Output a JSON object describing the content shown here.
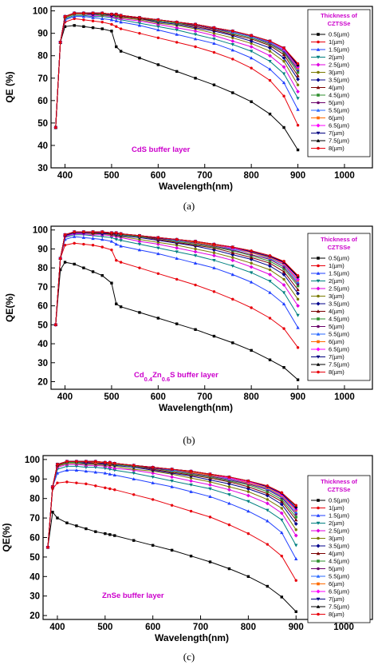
{
  "colors": {
    "series": [
      "#000000",
      "#e8000b",
      "#1f3fff",
      "#008080",
      "#e000e0",
      "#7a7a00",
      "#00008b",
      "#7a0000",
      "#2f8f2f",
      "#6a006a",
      "#2a6aff",
      "#ff6a00",
      "#ff00ff",
      "#000080",
      "#000000",
      "#e8000b"
    ],
    "annotation": "#cc00cc"
  },
  "chart_data": [
    {
      "type": "line",
      "caption": "(a)",
      "title": "",
      "annotation": "CdS buffer layer",
      "xlabel": "Wavelength(nm)",
      "ylabel": "QE (%)",
      "xlim": [
        370,
        1060
      ],
      "ylim": [
        30,
        102
      ],
      "xticks": [
        400,
        500,
        600,
        700,
        800,
        900,
        1000
      ],
      "yticks": [
        30,
        40,
        50,
        60,
        70,
        80,
        90,
        100
      ],
      "legend": {
        "title": "Thickness of CZTSSe",
        "placement": "right",
        "entries": [
          "0.5(µm)",
          "1(µm)",
          "1.5(µm)",
          "2(µm)",
          "2.5(µm)",
          "3(µm)",
          "3.5(µm)",
          "4(µm)",
          "4.5(µm)",
          "5(µm)",
          "5.5(µm)",
          "6(µm)",
          "6.5(µm)",
          "7(µm)",
          "7.5(µm)",
          "8(µm)"
        ]
      },
      "x": [
        380,
        390,
        400,
        420,
        440,
        460,
        480,
        500,
        510,
        520,
        560,
        600,
        640,
        680,
        720,
        760,
        800,
        840,
        870,
        900
      ],
      "series_values": [
        [
          48,
          86,
          93,
          93.5,
          93,
          92.5,
          92,
          91,
          84,
          82,
          79,
          76,
          73,
          70,
          67,
          63.5,
          59.5,
          54,
          48,
          38
        ],
        [
          48,
          86,
          95,
          96.5,
          96,
          95.5,
          95,
          94,
          93,
          92,
          90,
          88,
          86,
          84,
          81.5,
          78.5,
          74.5,
          69,
          62,
          49
        ],
        [
          48,
          86,
          96,
          97.5,
          97.5,
          97,
          96.5,
          96,
          95.5,
          95,
          93.5,
          91.5,
          89.5,
          87.5,
          85.5,
          82.5,
          79,
          74,
          68,
          56
        ],
        [
          48,
          86,
          96.5,
          98,
          98,
          97.5,
          97.5,
          97,
          96.5,
          96,
          94.5,
          93,
          91.5,
          89.5,
          87.5,
          85,
          82,
          77.5,
          72,
          61
        ],
        [
          48,
          86,
          97,
          98.5,
          98.5,
          98,
          98,
          97.5,
          97,
          96.5,
          95.5,
          94,
          92.5,
          91,
          89,
          86.5,
          84,
          80,
          75,
          64
        ],
        [
          48,
          86,
          97,
          98.5,
          98.5,
          98.5,
          98,
          98,
          97.5,
          97,
          96,
          94.5,
          93.5,
          92,
          90,
          88,
          85.5,
          82,
          77.5,
          67
        ],
        [
          48,
          86,
          97.5,
          99,
          99,
          98.5,
          98.5,
          98,
          98,
          97.5,
          96.5,
          95,
          94,
          92.5,
          91,
          89,
          86.5,
          83.5,
          79,
          69.5
        ],
        [
          48,
          86,
          97.5,
          99,
          99,
          99,
          98.5,
          98.5,
          98,
          97.5,
          96.5,
          95.5,
          94.5,
          93,
          91.5,
          89.5,
          87.5,
          84.5,
          80.5,
          71
        ],
        [
          48,
          86,
          97.5,
          99,
          99,
          99,
          98.5,
          98.5,
          98,
          98,
          97,
          95.5,
          94.5,
          93.5,
          92,
          90,
          88,
          85,
          81.5,
          72.5
        ],
        [
          48,
          86,
          97.5,
          99,
          99,
          99,
          99,
          98.5,
          98.5,
          98,
          97,
          96,
          95,
          93.5,
          92,
          90.5,
          88.5,
          85.5,
          82,
          73.5
        ],
        [
          48,
          86,
          97.5,
          99,
          99,
          99,
          99,
          98.5,
          98.5,
          98,
          97,
          96,
          95,
          94,
          92.5,
          90.5,
          88.5,
          86,
          82.5,
          74
        ],
        [
          48,
          86,
          97.5,
          99,
          99,
          99,
          99,
          98.5,
          98.5,
          98,
          97,
          96,
          95,
          94,
          92.5,
          91,
          89,
          86.5,
          83,
          74.5
        ],
        [
          48,
          86,
          97.5,
          99,
          99,
          99,
          99,
          98.5,
          98.5,
          98,
          97,
          96,
          95,
          94,
          92.5,
          91,
          89,
          86.5,
          83,
          75
        ],
        [
          48,
          86,
          97.5,
          99,
          99,
          99,
          99,
          98.5,
          98.5,
          98,
          97,
          96,
          95,
          94,
          92.5,
          91,
          89,
          86.5,
          83.5,
          75.5
        ],
        [
          48,
          86,
          97.5,
          99,
          99,
          99,
          99,
          98.5,
          98.5,
          98,
          97,
          96,
          95,
          94,
          92.5,
          91,
          89,
          86.5,
          83.5,
          76
        ],
        [
          48,
          86,
          97.5,
          99,
          99,
          99,
          99,
          98.5,
          98.5,
          98,
          97,
          96,
          95,
          94,
          92.5,
          91,
          89,
          86.5,
          83.5,
          76.5
        ]
      ]
    },
    {
      "type": "line",
      "caption": "(b)",
      "title": "",
      "annotation": "Cd0.4Zn0.6S buffer layer",
      "annotation_parts": [
        "Cd",
        "0.4",
        "Zn",
        "0.6",
        "S buffer layer"
      ],
      "xlabel": "Wavelength(nm)",
      "ylabel": "QE(%)",
      "xlim": [
        370,
        1060
      ],
      "ylim": [
        16,
        102
      ],
      "xticks": [
        400,
        500,
        600,
        700,
        800,
        900,
        1000
      ],
      "yticks": [
        20,
        30,
        40,
        50,
        60,
        70,
        80,
        90,
        100
      ],
      "legend": {
        "title": "Thickness of CZTSSe",
        "placement": "right",
        "entries": [
          "0.5(µm)",
          "1(µm)",
          "1.5(µm)",
          "2(µm)",
          "2.5(µm)",
          "3(µm)",
          "3.5(µm)",
          "4(µm)",
          "4.5(µm)",
          "5(µm)",
          "5.5(µm)",
          "6(µm)",
          "6.5(µm)",
          "7(µm)",
          "7.5(µm)",
          "8(µm)"
        ]
      },
      "x": [
        380,
        390,
        400,
        420,
        440,
        460,
        480,
        500,
        510,
        520,
        560,
        600,
        640,
        680,
        720,
        760,
        800,
        840,
        870,
        900
      ],
      "series_values": [
        [
          50,
          79,
          83,
          82,
          80,
          78,
          76,
          72,
          61,
          59.5,
          56.5,
          53.5,
          50.5,
          47.5,
          44,
          40.5,
          36.5,
          31.5,
          27.5,
          21
        ],
        [
          50,
          85,
          92,
          93,
          92.5,
          92,
          91,
          89.5,
          84,
          83,
          80,
          77,
          74,
          71,
          67.5,
          63.5,
          59,
          53.5,
          48,
          38
        ],
        [
          50,
          85,
          95,
          96.5,
          96,
          95.5,
          95,
          94,
          92.5,
          91.5,
          89.5,
          87.5,
          85,
          82.5,
          80,
          76.5,
          72.5,
          67,
          61,
          48.5
        ],
        [
          50,
          85,
          96,
          97.5,
          97.5,
          97,
          96.5,
          96,
          95,
          94.5,
          92.5,
          90.5,
          88.5,
          86.5,
          84,
          81,
          77.5,
          73,
          67,
          55
        ],
        [
          50,
          85,
          96.5,
          98,
          98,
          97.5,
          97.5,
          97,
          96.5,
          96,
          94,
          92.5,
          90.5,
          88.5,
          86.5,
          84,
          80.5,
          76.5,
          71,
          60
        ],
        [
          50,
          85,
          97,
          98.5,
          98.5,
          98,
          98,
          97.5,
          97,
          96.5,
          95,
          93.5,
          92,
          90,
          88,
          85.5,
          82.5,
          79,
          74,
          63.5
        ],
        [
          50,
          85,
          97,
          98.5,
          98.5,
          98.5,
          98,
          98,
          97.5,
          97,
          96,
          94.5,
          93,
          91.5,
          89.5,
          87,
          84.5,
          81,
          76.5,
          66.5
        ],
        [
          50,
          85,
          97.5,
          99,
          99,
          98.5,
          98.5,
          98,
          98,
          97.5,
          96.5,
          95,
          93.5,
          92,
          90.5,
          88,
          85.5,
          82.5,
          78,
          68.5
        ],
        [
          50,
          85,
          97.5,
          99,
          99,
          99,
          98.5,
          98.5,
          98,
          97.5,
          96.5,
          95.5,
          94,
          92.5,
          91,
          89,
          86.5,
          83.5,
          79.5,
          70.5
        ],
        [
          50,
          85,
          97.5,
          99,
          99,
          99,
          98.5,
          98.5,
          98,
          98,
          97,
          95.5,
          94.5,
          93,
          91.5,
          89.5,
          87,
          84.5,
          80.5,
          71.5
        ],
        [
          50,
          85,
          97.5,
          99,
          99,
          99,
          99,
          98.5,
          98.5,
          98,
          97,
          96,
          94.5,
          93.5,
          92,
          90,
          88,
          85,
          81.5,
          72.5
        ],
        [
          50,
          85,
          97.5,
          99,
          99,
          99,
          99,
          98.5,
          98.5,
          98,
          97,
          96,
          95,
          93.5,
          92,
          90.5,
          88,
          85.5,
          82,
          73.5
        ],
        [
          50,
          85,
          97.5,
          99,
          99,
          99,
          99,
          98.5,
          98.5,
          98,
          97,
          96,
          95,
          94,
          92.5,
          90.5,
          88.5,
          86,
          82.5,
          74
        ],
        [
          50,
          85,
          97.5,
          99,
          99,
          99,
          99,
          98.5,
          98.5,
          98,
          97,
          96,
          95,
          94,
          92.5,
          91,
          88.5,
          86,
          83,
          75
        ],
        [
          50,
          85,
          97.5,
          99,
          99,
          99,
          99,
          98.5,
          98.5,
          98,
          97,
          96,
          95,
          94,
          92.5,
          91,
          89,
          86.5,
          83,
          75.5
        ],
        [
          50,
          85,
          97.5,
          99,
          99,
          99,
          99,
          98.5,
          98.5,
          98,
          97,
          96,
          95,
          94,
          92.5,
          91,
          89,
          86.5,
          83.5,
          76
        ]
      ]
    },
    {
      "type": "line",
      "caption": "(c)",
      "title": "",
      "annotation": "ZnSe buffer layer",
      "xlabel": "Wavelength(nm)",
      "ylabel": "QE(%)",
      "xlim": [
        370,
        1060
      ],
      "ylim": [
        18,
        102
      ],
      "xticks": [
        400,
        500,
        600,
        700,
        800,
        900,
        1000
      ],
      "yticks": [
        20,
        30,
        40,
        50,
        60,
        70,
        80,
        90,
        100
      ],
      "legend": {
        "title": "Thickness of CZTSSe",
        "placement": "right",
        "entries": [
          "0.5(µm)",
          "1(µm)",
          "1.5(µm)",
          "2(µm)",
          "2.5(µm)",
          "3(µm)",
          "3.5(µm)",
          "4(µm)",
          "4.5(µm)",
          "5(µm)",
          "5.5(µm)",
          "6(µm)",
          "6.5(µm)",
          "7(µm)",
          "7.5(µm)",
          "8(µm)"
        ]
      },
      "x": [
        380,
        390,
        400,
        420,
        440,
        460,
        480,
        500,
        510,
        520,
        560,
        600,
        640,
        680,
        720,
        760,
        800,
        840,
        870,
        900
      ],
      "series_values": [
        [
          55,
          73,
          70,
          67.5,
          66,
          64.5,
          63,
          62,
          61.5,
          61,
          58.5,
          56,
          53.5,
          50.5,
          47.5,
          44,
          40,
          35,
          29.5,
          22
        ],
        [
          55,
          85,
          88,
          88.5,
          88,
          87.5,
          86.5,
          85.5,
          85,
          84.5,
          82,
          79.5,
          76.5,
          73.5,
          70.5,
          66.5,
          62,
          56.5,
          50.5,
          38
        ],
        [
          55,
          86,
          93,
          94.5,
          94.5,
          94,
          93.5,
          93,
          92.5,
          92,
          90,
          88,
          86,
          83.5,
          81,
          77.5,
          73.5,
          68.5,
          62.5,
          49
        ],
        [
          55,
          86,
          95,
          96.5,
          96.5,
          96,
          96,
          95.5,
          95,
          94.5,
          93,
          91,
          89,
          87,
          85,
          82,
          78.5,
          74,
          69,
          56
        ],
        [
          55,
          86,
          96,
          97.5,
          97.5,
          97,
          97,
          96.5,
          96,
          95.5,
          94.5,
          93,
          91,
          89,
          87,
          84.5,
          81.5,
          77.5,
          72.5,
          61
        ],
        [
          55,
          86,
          96.5,
          98,
          98,
          97.5,
          97.5,
          97,
          97,
          96.5,
          95,
          94,
          92.5,
          90.5,
          88.5,
          86,
          83.5,
          79.5,
          75,
          64
        ],
        [
          55,
          86,
          97,
          98.5,
          98.5,
          98,
          98,
          97.5,
          97.5,
          97,
          96,
          94.5,
          93,
          91.5,
          89.5,
          87.5,
          85,
          81.5,
          77,
          67
        ],
        [
          55,
          86,
          97,
          98.5,
          98.5,
          98.5,
          98,
          98,
          97.5,
          97.5,
          96.5,
          95,
          93.5,
          92,
          90.5,
          88.5,
          86,
          82.5,
          78.5,
          69
        ],
        [
          55,
          86,
          97.5,
          98.5,
          98.5,
          98.5,
          98.5,
          98,
          98,
          97.5,
          96.5,
          95.5,
          94,
          92.5,
          91,
          89,
          87,
          83.5,
          79.5,
          70.5
        ],
        [
          55,
          86,
          97.5,
          99,
          99,
          98.5,
          98.5,
          98,
          98,
          98,
          97,
          95.5,
          94.5,
          93,
          91.5,
          89.5,
          87.5,
          84.5,
          80.5,
          72
        ],
        [
          55,
          86,
          97.5,
          99,
          99,
          99,
          98.5,
          98.5,
          98,
          98,
          97,
          96,
          94.5,
          93.5,
          92,
          90,
          88,
          85,
          81,
          73
        ],
        [
          55,
          86,
          97.5,
          99,
          99,
          99,
          98.5,
          98.5,
          98,
          98,
          97,
          96,
          95,
          93.5,
          92,
          90.5,
          88,
          85.5,
          81.5,
          74
        ],
        [
          55,
          86,
          97.5,
          99,
          99,
          99,
          99,
          98.5,
          98.5,
          98,
          97,
          96,
          95,
          94,
          92.5,
          90.5,
          88.5,
          86,
          82,
          74.5
        ],
        [
          55,
          86,
          97.5,
          99,
          99,
          99,
          99,
          98.5,
          98.5,
          98,
          97,
          96,
          95,
          94,
          92.5,
          91,
          89,
          86,
          82.5,
          75
        ],
        [
          55,
          86,
          97.5,
          99,
          99,
          99,
          99,
          98.5,
          98.5,
          98,
          97,
          96,
          95,
          94,
          92.5,
          91,
          89,
          86.5,
          83,
          76
        ],
        [
          55,
          86,
          97.5,
          99,
          99,
          99,
          99,
          98.5,
          98.5,
          98,
          97,
          96,
          95,
          94,
          92.5,
          91,
          89,
          86.5,
          83,
          76.5
        ]
      ]
    }
  ]
}
